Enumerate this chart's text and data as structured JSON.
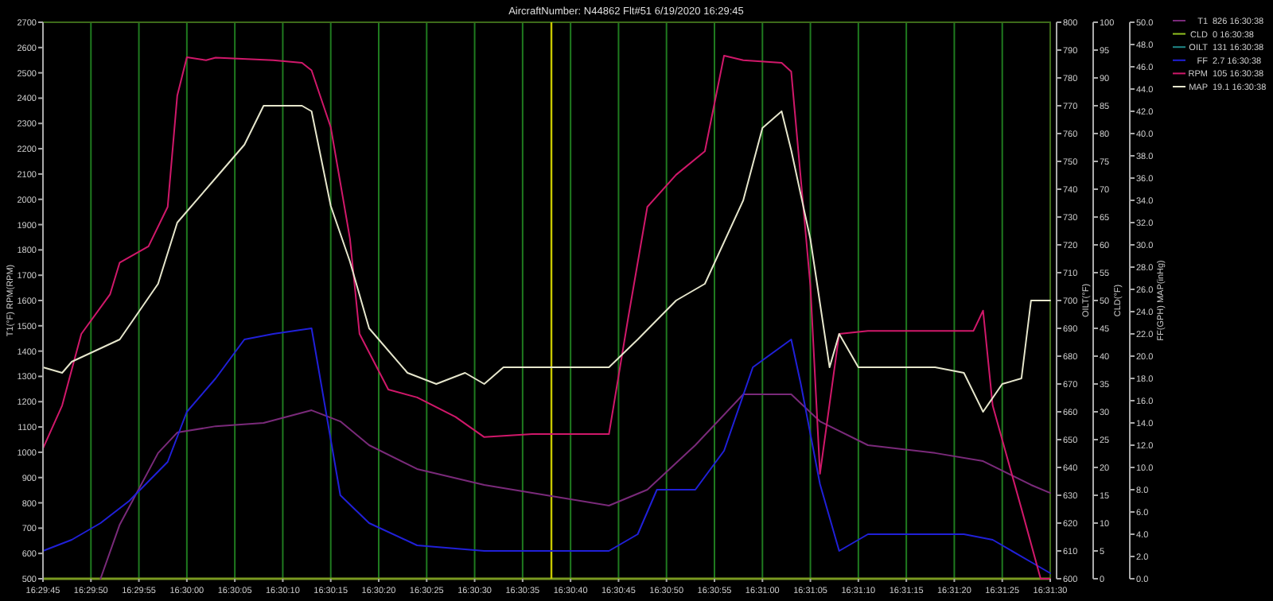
{
  "chart_data": {
    "type": "line",
    "title": "AircraftNumber: N44862 Flt#51 6/19/2020 16:29:45",
    "ylabel": "T1(°F) RPM(RPM)",
    "y2label": "FF(GPH) MAP(inHg)",
    "y3label": "OILT(°F)",
    "xlim": [
      "2020-06-19T16:29:45",
      "2020-06-19T16:31:30"
    ],
    "xticks": [
      {
        "value": "2020-06-19T16:29:45",
        "label": "16:29:45"
      },
      {
        "value": "2020-06-19T16:29:50",
        "label": "16:29:50"
      },
      {
        "value": "2020-06-19T16:29:55",
        "label": "16:29:55"
      },
      {
        "value": "2020-06-19T16:30:00",
        "label": "16:30:00"
      },
      {
        "value": "2020-06-19T16:30:05",
        "label": "16:30:05"
      },
      {
        "value": "2020-06-19T16:30:10",
        "label": "16:30:10"
      },
      {
        "value": "2020-06-19T16:30:15",
        "label": "16:30:15"
      },
      {
        "value": "2020-06-19T16:30:20",
        "label": "16:30:20"
      },
      {
        "value": "2020-06-19T16:30:25",
        "label": "16:30:25"
      },
      {
        "value": "2020-06-19T16:30:30",
        "label": "16:30:30"
      },
      {
        "value": "2020-06-19T16:30:35",
        "label": "16:30:35"
      },
      {
        "value": "2020-06-19T16:30:40",
        "label": "16:30:40"
      },
      {
        "value": "2020-06-19T16:30:45",
        "label": "16:30:45"
      },
      {
        "value": "2020-06-19T16:30:50",
        "label": "16:30:50"
      },
      {
        "value": "2020-06-19T16:30:55",
        "label": "16:30:55"
      },
      {
        "value": "2020-06-19T16:31:00",
        "label": "16:31:00"
      },
      {
        "value": "2020-06-19T16:31:05",
        "label": "16:31:05"
      },
      {
        "value": "2020-06-19T16:31:10",
        "label": "16:31:10"
      },
      {
        "value": "2020-06-19T16:31:15",
        "label": "16:31:15"
      },
      {
        "value": "2020-06-19T16:31:20",
        "label": "16:31:20"
      },
      {
        "value": "2020-06-19T16:31:25",
        "label": "16:31:25"
      },
      {
        "value": "2020-06-19T16:31:30",
        "label": "16:31:30"
      }
    ],
    "ylim": [
      500,
      2700
    ],
    "yticks": [
      500,
      600,
      700,
      800,
      900,
      1000,
      1100,
      1200,
      1300,
      1400,
      1500,
      1600,
      1700,
      1800,
      1900,
      2000,
      2100,
      2200,
      2300,
      2400,
      2500,
      2600,
      2700
    ],
    "y3lim": [
      600,
      800
    ],
    "y3ticks": [
      600,
      610,
      620,
      630,
      640,
      650,
      660,
      670,
      680,
      690,
      700,
      710,
      720,
      730,
      740,
      750,
      760,
      770,
      780,
      790,
      800
    ],
    "y2lim": [
      0,
      50
    ],
    "y2ticks": [
      {
        "value": 0,
        "label": "0.0"
      },
      {
        "value": 2,
        "label": "2.0"
      },
      {
        "value": 4,
        "label": "4.0"
      },
      {
        "value": 6,
        "label": "6.0"
      },
      {
        "value": 8,
        "label": "8.0"
      },
      {
        "value": 10,
        "label": "10.0"
      },
      {
        "value": 12,
        "label": "12.0"
      },
      {
        "value": 14,
        "label": "14.0"
      },
      {
        "value": 16,
        "label": "16.0"
      },
      {
        "value": 18,
        "label": "18.0"
      },
      {
        "value": 20,
        "label": "20.0"
      },
      {
        "value": 22,
        "label": "22.0"
      },
      {
        "value": 24,
        "label": "24.0"
      },
      {
        "value": 26,
        "label": "26.0"
      },
      {
        "value": 28,
        "label": "28.0"
      },
      {
        "value": 30,
        "label": "30.0"
      },
      {
        "value": 32,
        "label": "32.0"
      },
      {
        "value": 34,
        "label": "34.0"
      },
      {
        "value": 36,
        "label": "36.0"
      },
      {
        "value": 38,
        "label": "38.0"
      },
      {
        "value": 40,
        "label": "40.0"
      },
      {
        "value": 42,
        "label": "42.0"
      },
      {
        "value": 44,
        "label": "44.0"
      },
      {
        "value": 46,
        "label": "46.0"
      },
      {
        "value": 48,
        "label": "48.0"
      },
      {
        "value": 50,
        "label": "50.0"
      }
    ],
    "grid": "x",
    "legend": "top right",
    "ref_lines": [
      {
        "axis": "x",
        "value": "2020-06-19T16:30:38",
        "color": "#c8c800"
      }
    ],
    "annotations": [
      "826 16:30:38",
      "0 16:30:38",
      "131 16:30:38",
      "2.7 16:30:38",
      "105 16:30:38",
      "19.1 16:30:38",
      "CLD(°F)",
      "0",
      "5",
      "10",
      "15",
      "20",
      "25",
      "30",
      "35",
      "40",
      "45",
      "50",
      "55",
      "60",
      "65",
      "70",
      "75",
      "80",
      "85",
      "90",
      "95",
      "100"
    ],
    "series": [
      {
        "name": "T1",
        "color": "#7a2a7a",
        "x": [
          "2020-06-19T16:29:51",
          "2020-06-19T16:29:53",
          "2020-06-19T16:29:57",
          "2020-06-19T16:29:59",
          "2020-06-19T16:30:03",
          "2020-06-19T16:30:08",
          "2020-06-19T16:30:13",
          "2020-06-19T16:30:16",
          "2020-06-19T16:30:19",
          "2020-06-19T16:30:24",
          "2020-06-19T16:30:31",
          "2020-06-19T16:30:38",
          "2020-06-19T16:30:44",
          "2020-06-19T16:30:48",
          "2020-06-19T16:30:53",
          "2020-06-19T16:30:58",
          "2020-06-19T16:31:03",
          "2020-06-19T16:31:06",
          "2020-06-19T16:31:11",
          "2020-06-19T16:31:18",
          "2020-06-19T16:31:23",
          "2020-06-19T16:31:28",
          "2020-06-19T16:31:30"
        ],
        "values": [
          500,
          714,
          997,
          1078,
          1103,
          1116,
          1166,
          1122,
          1028,
          934,
          871,
          827,
          789,
          852,
          1028,
          1229,
          1229,
          1122,
          1028,
          997,
          965,
          871,
          839
        ]
      },
      {
        "name": "CLD",
        "color": "#90c020"
      },
      {
        "name": "OILT",
        "color": "#208888",
        "axis": "y3"
      },
      {
        "name": "FF",
        "color": "#2020d8",
        "axis": "y2",
        "x": [
          "2020-06-19T16:29:45",
          "2020-06-19T16:29:48",
          "2020-06-19T16:29:51",
          "2020-06-19T16:29:54",
          "2020-06-19T16:29:58",
          "2020-06-19T16:30:00",
          "2020-06-19T16:30:03",
          "2020-06-19T16:30:06",
          "2020-06-19T16:30:09",
          "2020-06-19T16:30:13",
          "2020-06-19T16:30:14",
          "2020-06-19T16:30:16",
          "2020-06-19T16:30:19",
          "2020-06-19T16:30:24",
          "2020-06-19T16:30:31",
          "2020-06-19T16:30:44",
          "2020-06-19T16:30:47",
          "2020-06-19T16:30:49",
          "2020-06-19T16:30:53",
          "2020-06-19T16:30:56",
          "2020-06-19T16:30:59",
          "2020-06-19T16:31:03",
          "2020-06-19T16:31:04",
          "2020-06-19T16:31:06",
          "2020-06-19T16:31:08",
          "2020-06-19T16:31:11",
          "2020-06-19T16:31:21",
          "2020-06-19T16:31:24",
          "2020-06-19T16:31:28",
          "2020-06-19T16:31:30"
        ],
        "values": [
          2.5,
          3.5,
          5,
          7,
          10.5,
          15,
          18,
          21.5,
          22,
          22.5,
          17.5,
          7.5,
          5,
          3,
          2.5,
          2.5,
          4,
          8,
          8,
          11.5,
          19,
          21.5,
          17.5,
          8.5,
          2.5,
          4,
          4,
          3.5,
          1.5,
          0.5
        ]
      },
      {
        "name": "RPM",
        "color": "#d0186a",
        "x": [
          "2020-06-19T16:29:45",
          "2020-06-19T16:29:47",
          "2020-06-19T16:29:49",
          "2020-06-19T16:29:52",
          "2020-06-19T16:29:53",
          "2020-06-19T16:29:56",
          "2020-06-19T16:29:58",
          "2020-06-19T16:29:59",
          "2020-06-19T16:30:00",
          "2020-06-19T16:30:02",
          "2020-06-19T16:30:03",
          "2020-06-19T16:30:09",
          "2020-06-19T16:30:12",
          "2020-06-19T16:30:13",
          "2020-06-19T16:30:15",
          "2020-06-19T16:30:17",
          "2020-06-19T16:30:18",
          "2020-06-19T16:30:21",
          "2020-06-19T16:30:24",
          "2020-06-19T16:30:28",
          "2020-06-19T16:30:31",
          "2020-06-19T16:30:36",
          "2020-06-19T16:30:44",
          "2020-06-19T16:30:46",
          "2020-06-19T16:30:48",
          "2020-06-19T16:30:51",
          "2020-06-19T16:30:54",
          "2020-06-19T16:30:56",
          "2020-06-19T16:30:58",
          "2020-06-19T16:31:02",
          "2020-06-19T16:31:03",
          "2020-06-19T16:31:05",
          "2020-06-19T16:31:06",
          "2020-06-19T16:31:08",
          "2020-06-19T16:31:11",
          "2020-06-19T16:31:18",
          "2020-06-19T16:31:22",
          "2020-06-19T16:31:23",
          "2020-06-19T16:31:24",
          "2020-06-19T16:31:27",
          "2020-06-19T16:31:29",
          "2020-06-19T16:31:30"
        ],
        "values": [
          1015,
          1185,
          1468,
          1625,
          1750,
          1814,
          1970,
          2410,
          2562,
          2550,
          2560,
          2550,
          2540,
          2510,
          2285,
          1845,
          1468,
          1248,
          1217,
          1140,
          1060,
          1072,
          1072,
          1530,
          1970,
          2097,
          2190,
          2568,
          2550,
          2540,
          2505,
          1657,
          915,
          1468,
          1480,
          1480,
          1480,
          1560,
          1185,
          777,
          500,
          500
        ]
      },
      {
        "name": "MAP",
        "color": "#e6e6cc",
        "axis": "y2",
        "x": [
          "2020-06-19T16:29:45",
          "2020-06-19T16:29:47",
          "2020-06-19T16:29:48",
          "2020-06-19T16:29:53",
          "2020-06-19T16:29:57",
          "2020-06-19T16:29:59",
          "2020-06-19T16:30:03",
          "2020-06-19T16:30:06",
          "2020-06-19T16:30:08",
          "2020-06-19T16:30:12",
          "2020-06-19T16:30:13",
          "2020-06-19T16:30:15",
          "2020-06-19T16:30:17",
          "2020-06-19T16:30:19",
          "2020-06-19T16:30:23",
          "2020-06-19T16:30:26",
          "2020-06-19T16:30:29",
          "2020-06-19T16:30:31",
          "2020-06-19T16:30:33",
          "2020-06-19T16:30:44",
          "2020-06-19T16:30:47",
          "2020-06-19T16:30:51",
          "2020-06-19T16:30:54",
          "2020-06-19T16:30:58",
          "2020-06-19T16:31:00",
          "2020-06-19T16:31:02",
          "2020-06-19T16:31:03",
          "2020-06-19T16:31:05",
          "2020-06-19T16:31:07",
          "2020-06-19T16:31:08",
          "2020-06-19T16:31:10",
          "2020-06-19T16:31:18",
          "2020-06-19T16:31:21",
          "2020-06-19T16:31:23",
          "2020-06-19T16:31:25",
          "2020-06-19T16:31:27",
          "2020-06-19T16:31:28",
          "2020-06-19T16:31:30"
        ],
        "values": [
          19,
          18.5,
          19.5,
          21.5,
          26.5,
          32,
          36,
          39,
          42.5,
          42.5,
          42,
          33.5,
          28.5,
          22.5,
          18.5,
          17.5,
          18.5,
          17.5,
          19,
          19,
          21.5,
          25,
          26.5,
          34,
          40.5,
          42,
          38.5,
          30.5,
          19,
          22,
          19,
          19,
          18.5,
          15,
          17.5,
          18,
          25,
          25
        ]
      }
    ]
  }
}
